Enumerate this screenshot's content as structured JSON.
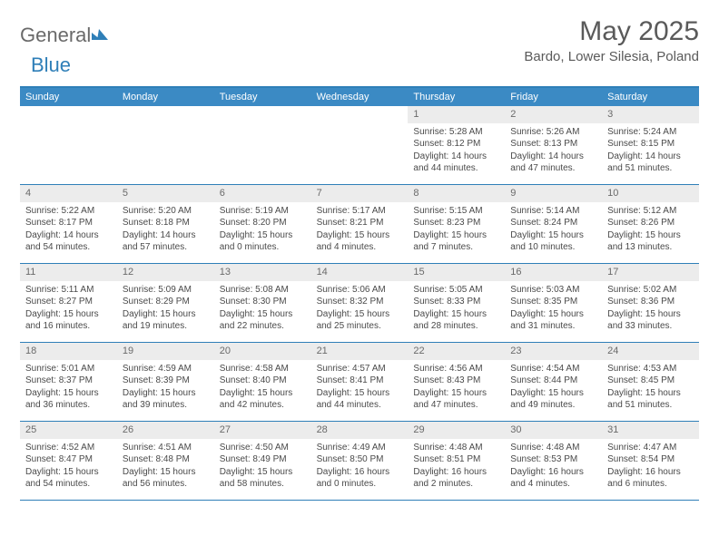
{
  "logo": {
    "text_gray": "General",
    "text_blue": "Blue",
    "mark_color": "#2f7fb8",
    "gray_color": "#6a6a6a"
  },
  "title": "May 2025",
  "location": "Bardo, Lower Silesia, Poland",
  "colors": {
    "header_bar": "#3b8ac4",
    "border": "#2f7fb8",
    "daynum_bg": "#ececec",
    "text": "#4a4a4a"
  },
  "days_of_week": [
    "Sunday",
    "Monday",
    "Tuesday",
    "Wednesday",
    "Thursday",
    "Friday",
    "Saturday"
  ],
  "weeks": [
    [
      null,
      null,
      null,
      null,
      {
        "n": "1",
        "sr": "Sunrise: 5:28 AM",
        "ss": "Sunset: 8:12 PM",
        "dl": "Daylight: 14 hours and 44 minutes."
      },
      {
        "n": "2",
        "sr": "Sunrise: 5:26 AM",
        "ss": "Sunset: 8:13 PM",
        "dl": "Daylight: 14 hours and 47 minutes."
      },
      {
        "n": "3",
        "sr": "Sunrise: 5:24 AM",
        "ss": "Sunset: 8:15 PM",
        "dl": "Daylight: 14 hours and 51 minutes."
      }
    ],
    [
      {
        "n": "4",
        "sr": "Sunrise: 5:22 AM",
        "ss": "Sunset: 8:17 PM",
        "dl": "Daylight: 14 hours and 54 minutes."
      },
      {
        "n": "5",
        "sr": "Sunrise: 5:20 AM",
        "ss": "Sunset: 8:18 PM",
        "dl": "Daylight: 14 hours and 57 minutes."
      },
      {
        "n": "6",
        "sr": "Sunrise: 5:19 AM",
        "ss": "Sunset: 8:20 PM",
        "dl": "Daylight: 15 hours and 0 minutes."
      },
      {
        "n": "7",
        "sr": "Sunrise: 5:17 AM",
        "ss": "Sunset: 8:21 PM",
        "dl": "Daylight: 15 hours and 4 minutes."
      },
      {
        "n": "8",
        "sr": "Sunrise: 5:15 AM",
        "ss": "Sunset: 8:23 PM",
        "dl": "Daylight: 15 hours and 7 minutes."
      },
      {
        "n": "9",
        "sr": "Sunrise: 5:14 AM",
        "ss": "Sunset: 8:24 PM",
        "dl": "Daylight: 15 hours and 10 minutes."
      },
      {
        "n": "10",
        "sr": "Sunrise: 5:12 AM",
        "ss": "Sunset: 8:26 PM",
        "dl": "Daylight: 15 hours and 13 minutes."
      }
    ],
    [
      {
        "n": "11",
        "sr": "Sunrise: 5:11 AM",
        "ss": "Sunset: 8:27 PM",
        "dl": "Daylight: 15 hours and 16 minutes."
      },
      {
        "n": "12",
        "sr": "Sunrise: 5:09 AM",
        "ss": "Sunset: 8:29 PM",
        "dl": "Daylight: 15 hours and 19 minutes."
      },
      {
        "n": "13",
        "sr": "Sunrise: 5:08 AM",
        "ss": "Sunset: 8:30 PM",
        "dl": "Daylight: 15 hours and 22 minutes."
      },
      {
        "n": "14",
        "sr": "Sunrise: 5:06 AM",
        "ss": "Sunset: 8:32 PM",
        "dl": "Daylight: 15 hours and 25 minutes."
      },
      {
        "n": "15",
        "sr": "Sunrise: 5:05 AM",
        "ss": "Sunset: 8:33 PM",
        "dl": "Daylight: 15 hours and 28 minutes."
      },
      {
        "n": "16",
        "sr": "Sunrise: 5:03 AM",
        "ss": "Sunset: 8:35 PM",
        "dl": "Daylight: 15 hours and 31 minutes."
      },
      {
        "n": "17",
        "sr": "Sunrise: 5:02 AM",
        "ss": "Sunset: 8:36 PM",
        "dl": "Daylight: 15 hours and 33 minutes."
      }
    ],
    [
      {
        "n": "18",
        "sr": "Sunrise: 5:01 AM",
        "ss": "Sunset: 8:37 PM",
        "dl": "Daylight: 15 hours and 36 minutes."
      },
      {
        "n": "19",
        "sr": "Sunrise: 4:59 AM",
        "ss": "Sunset: 8:39 PM",
        "dl": "Daylight: 15 hours and 39 minutes."
      },
      {
        "n": "20",
        "sr": "Sunrise: 4:58 AM",
        "ss": "Sunset: 8:40 PM",
        "dl": "Daylight: 15 hours and 42 minutes."
      },
      {
        "n": "21",
        "sr": "Sunrise: 4:57 AM",
        "ss": "Sunset: 8:41 PM",
        "dl": "Daylight: 15 hours and 44 minutes."
      },
      {
        "n": "22",
        "sr": "Sunrise: 4:56 AM",
        "ss": "Sunset: 8:43 PM",
        "dl": "Daylight: 15 hours and 47 minutes."
      },
      {
        "n": "23",
        "sr": "Sunrise: 4:54 AM",
        "ss": "Sunset: 8:44 PM",
        "dl": "Daylight: 15 hours and 49 minutes."
      },
      {
        "n": "24",
        "sr": "Sunrise: 4:53 AM",
        "ss": "Sunset: 8:45 PM",
        "dl": "Daylight: 15 hours and 51 minutes."
      }
    ],
    [
      {
        "n": "25",
        "sr": "Sunrise: 4:52 AM",
        "ss": "Sunset: 8:47 PM",
        "dl": "Daylight: 15 hours and 54 minutes."
      },
      {
        "n": "26",
        "sr": "Sunrise: 4:51 AM",
        "ss": "Sunset: 8:48 PM",
        "dl": "Daylight: 15 hours and 56 minutes."
      },
      {
        "n": "27",
        "sr": "Sunrise: 4:50 AM",
        "ss": "Sunset: 8:49 PM",
        "dl": "Daylight: 15 hours and 58 minutes."
      },
      {
        "n": "28",
        "sr": "Sunrise: 4:49 AM",
        "ss": "Sunset: 8:50 PM",
        "dl": "Daylight: 16 hours and 0 minutes."
      },
      {
        "n": "29",
        "sr": "Sunrise: 4:48 AM",
        "ss": "Sunset: 8:51 PM",
        "dl": "Daylight: 16 hours and 2 minutes."
      },
      {
        "n": "30",
        "sr": "Sunrise: 4:48 AM",
        "ss": "Sunset: 8:53 PM",
        "dl": "Daylight: 16 hours and 4 minutes."
      },
      {
        "n": "31",
        "sr": "Sunrise: 4:47 AM",
        "ss": "Sunset: 8:54 PM",
        "dl": "Daylight: 16 hours and 6 minutes."
      }
    ]
  ]
}
